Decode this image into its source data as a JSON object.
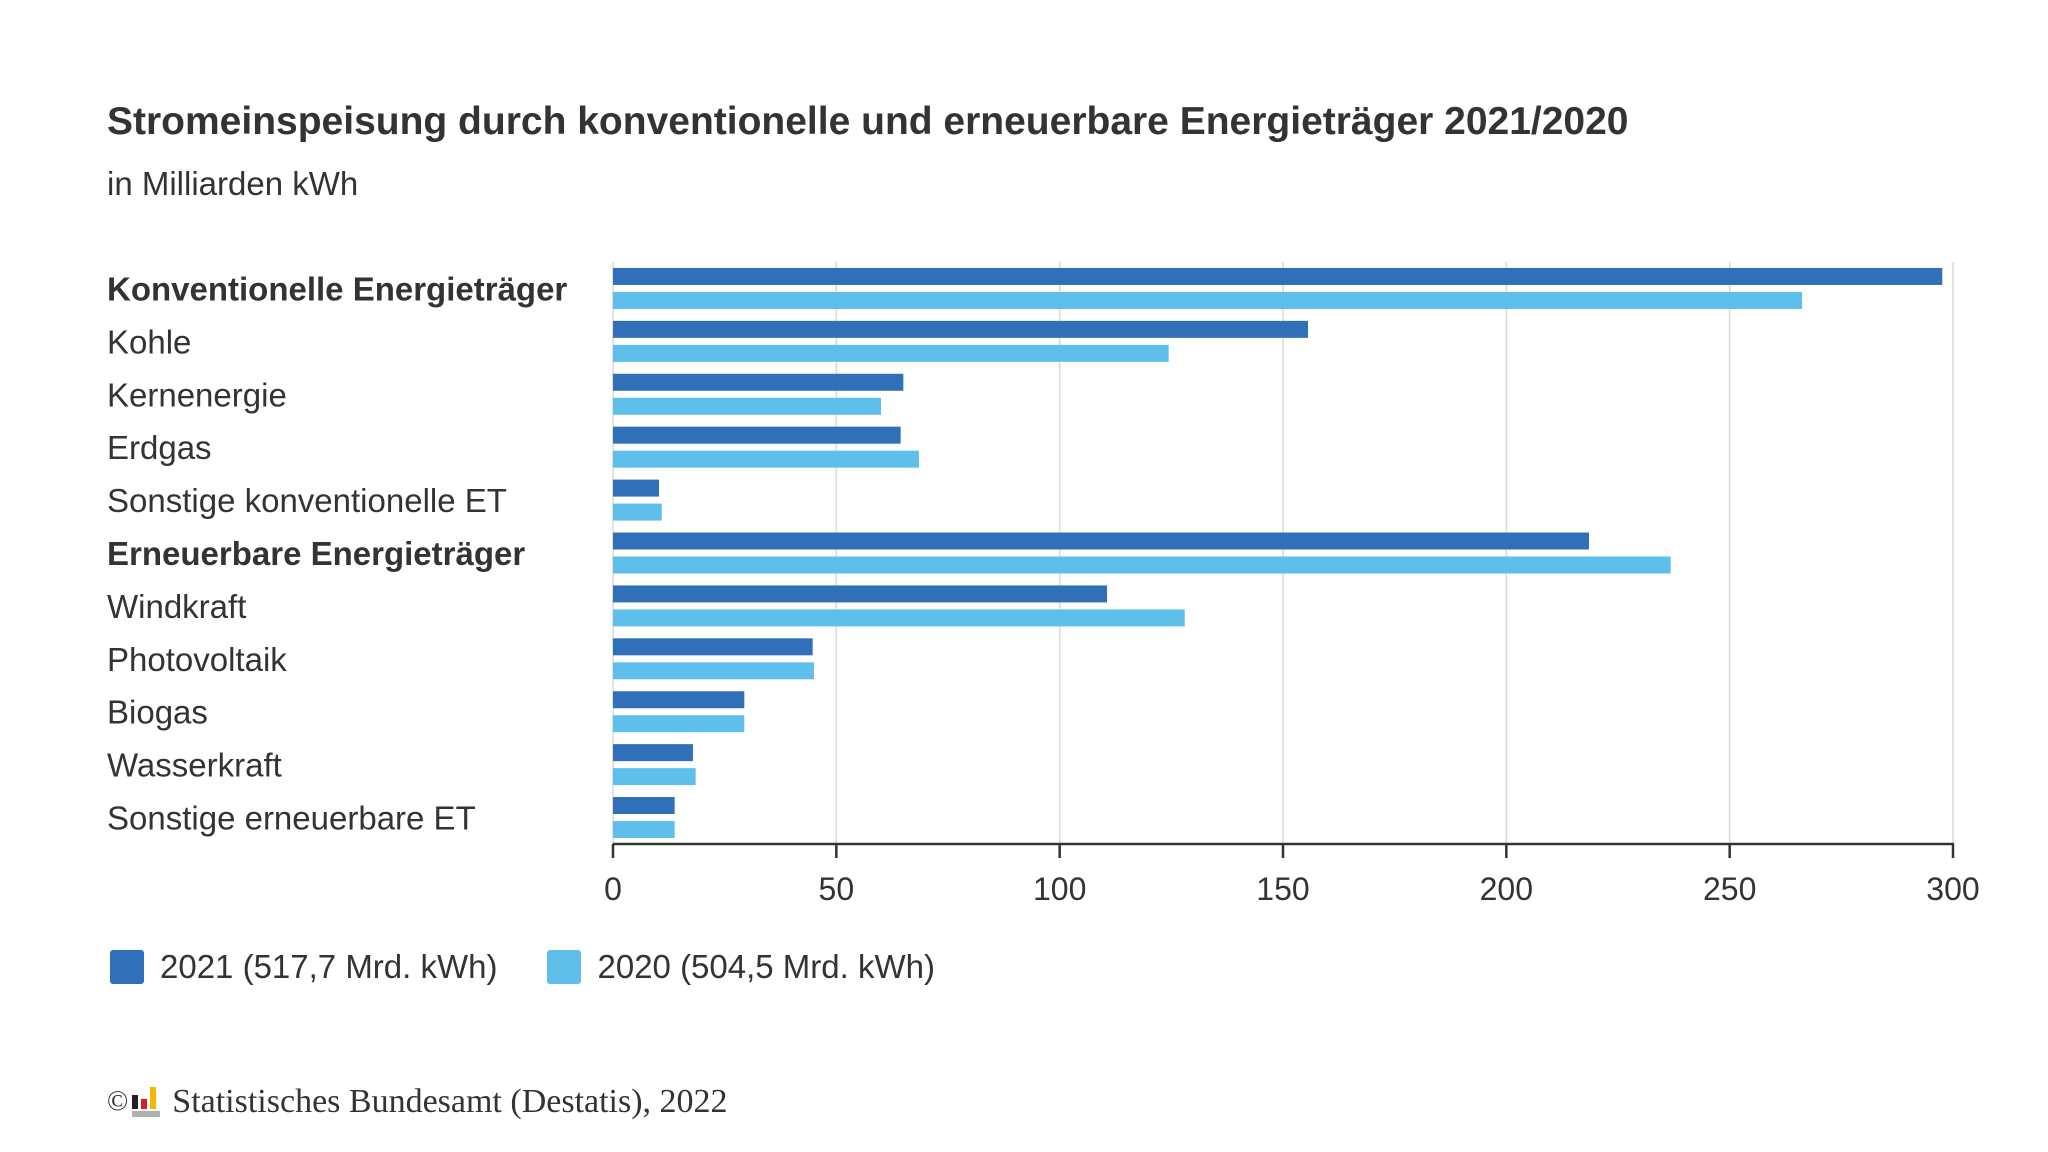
{
  "header": {
    "title": "Stromeinspeisung durch konventionelle und erneuerbare Energieträger 2021/2020",
    "subtitle": "in Milliarden kWh"
  },
  "chart_data": {
    "type": "bar",
    "orientation": "horizontal",
    "title": "Stromeinspeisung durch konventionelle und erneuerbare Energieträger 2021/2020",
    "subtitle": "in Milliarden kWh",
    "xlabel": "",
    "ylabel": "",
    "xlim": [
      0,
      300
    ],
    "xticks": [
      0,
      50,
      100,
      150,
      200,
      250,
      300
    ],
    "xtick_labels": [
      "0",
      "50",
      "100",
      "150",
      "200",
      "250",
      "300"
    ],
    "grid": true,
    "legend_position": "bottom-left",
    "categories": [
      "Konventionelle Energieträger",
      "Kohle",
      "Kernenergie",
      "Erdgas",
      "Sonstige konventionelle ET",
      "Erneuerbare Energieträger",
      "Windkraft",
      "Photovoltaik",
      "Biogas",
      "Wasserkraft",
      "Sonstige erneuerbare ET"
    ],
    "bold_categories": [
      "Konventionelle Energieträger",
      "Erneuerbare Energieträger"
    ],
    "series": [
      {
        "name": "2021 (517,7 Mrd. kWh)",
        "color": "#2f70b8",
        "values": [
          297.6,
          155.6,
          65.0,
          64.4,
          10.3,
          218.5,
          110.6,
          44.7,
          29.4,
          17.9,
          13.8
        ]
      },
      {
        "name": "2020 (504,5 Mrd. kWh)",
        "color": "#5fbfeb",
        "values": [
          266.2,
          124.4,
          60.0,
          68.5,
          10.9,
          236.8,
          128.0,
          45.0,
          29.4,
          18.5,
          13.8
        ]
      }
    ]
  },
  "colors": {
    "text": "#333333",
    "grid": "#d9d9d9",
    "axis": "#333333",
    "logo_black": "#222222",
    "logo_red": "#d4202a",
    "logo_yellow": "#f5b800"
  },
  "footer": {
    "copyright_symbol": "©",
    "text": "Statistisches Bundesamt (Destatis), 2022"
  }
}
